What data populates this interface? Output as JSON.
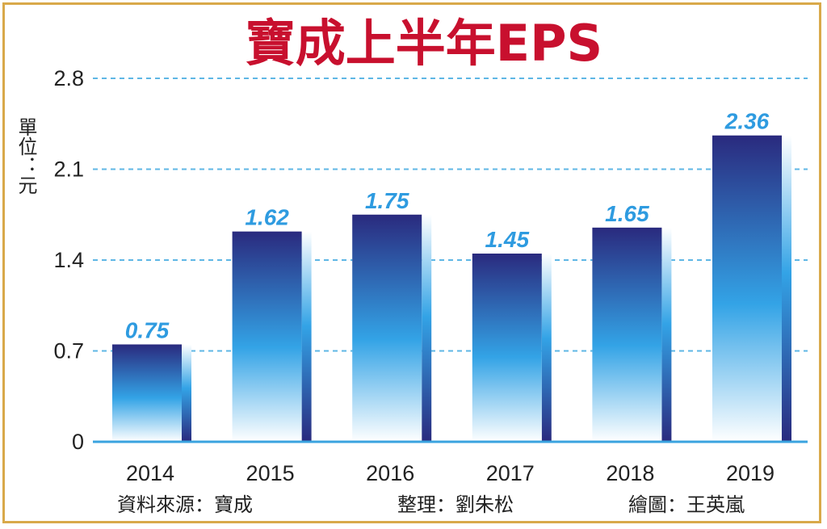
{
  "chart_data": {
    "type": "bar",
    "title": "寶成上半年EPS",
    "ylabel": "單位：元",
    "xlabel": "",
    "categories": [
      "2014",
      "2015",
      "2016",
      "2017",
      "2018",
      "2019"
    ],
    "values": [
      0.75,
      1.62,
      1.75,
      1.45,
      1.65,
      2.36
    ],
    "data_labels": [
      "0.75",
      "1.62",
      "1.75",
      "1.45",
      "1.65",
      "2.36"
    ],
    "ylim": [
      0,
      2.8
    ],
    "yticks": [
      0,
      0.7,
      1.4,
      2.1,
      2.8
    ],
    "ytick_labels": [
      "0",
      "0.7",
      "1.4",
      "2.1",
      "2.8"
    ],
    "grid": true,
    "legend": "none"
  },
  "footer": {
    "source": "資料來源：寶成",
    "editor": "整理：劉朱松",
    "artist": "繪圖：王英嵐"
  },
  "colors": {
    "title": "#c8102e",
    "value_label": "#2e9be0",
    "bar_top": "#2a2a7e",
    "bar_mid": "#33a3e6",
    "bar_bottom": "#ffffff",
    "grid": "#5fb7e5",
    "axis": "#3aa3df",
    "border": "#d9a94a"
  }
}
